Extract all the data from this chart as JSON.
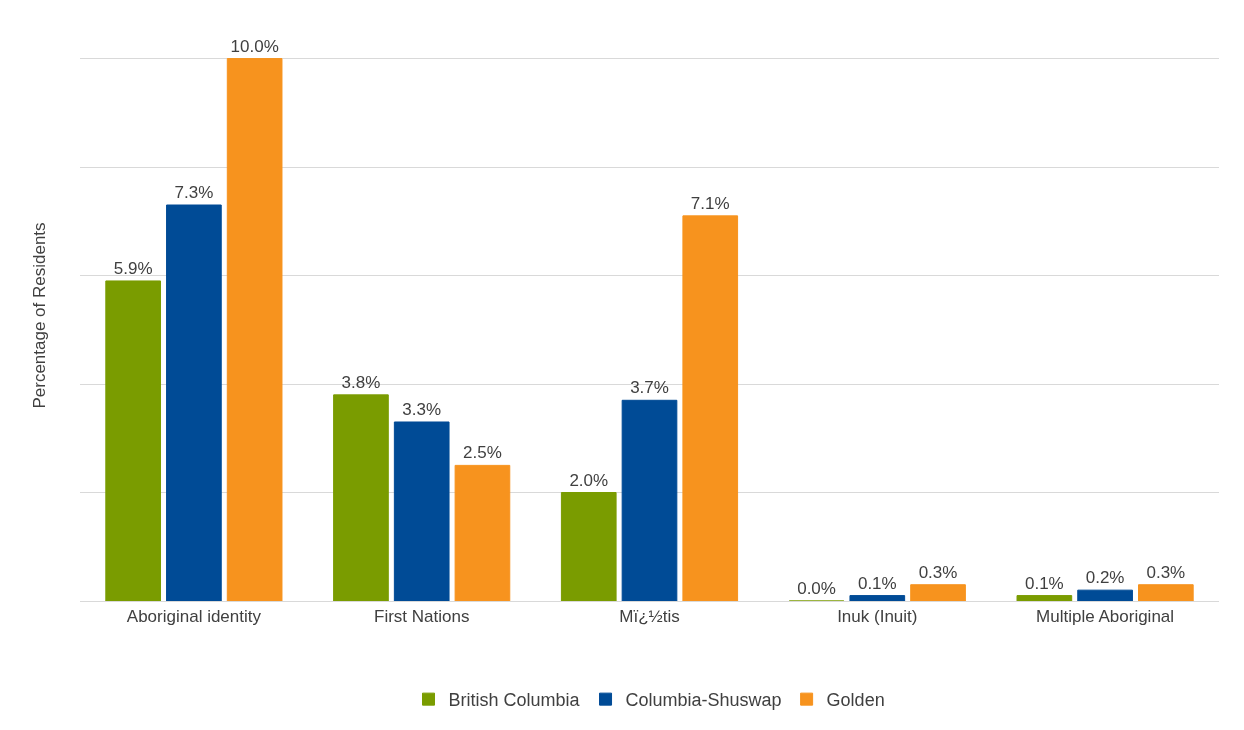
{
  "chart_data": {
    "type": "bar",
    "ylabel": "Percentage of Residents",
    "categories": [
      "Aboriginal identity",
      "First Nations",
      "Mï¿½tis",
      "Inuk (Inuit)",
      "Multiple Aboriginal"
    ],
    "series": [
      {
        "name": "British Columbia",
        "color": "#7a9c00",
        "values": [
          5.9,
          3.8,
          2.0,
          0.0,
          0.1
        ],
        "value_labels": [
          "5.9%",
          "3.8%",
          "2.0%",
          "0.0%",
          "0.1%"
        ]
      },
      {
        "name": "Columbia-Shuswap",
        "color": "#004b96",
        "values": [
          7.3,
          3.3,
          3.7,
          0.1,
          0.2
        ],
        "value_labels": [
          "7.3%",
          "3.3%",
          "3.7%",
          "0.1%",
          "0.2%"
        ]
      },
      {
        "name": "Golden",
        "color": "#f7931e",
        "values": [
          10.0,
          2.5,
          7.1,
          0.3,
          0.3
        ],
        "value_labels": [
          "10.0%",
          "2.5%",
          "7.1%",
          "0.3%",
          "0.3%"
        ]
      }
    ],
    "grid": "y",
    "legend": "bottom",
    "tick_labels": "x"
  }
}
